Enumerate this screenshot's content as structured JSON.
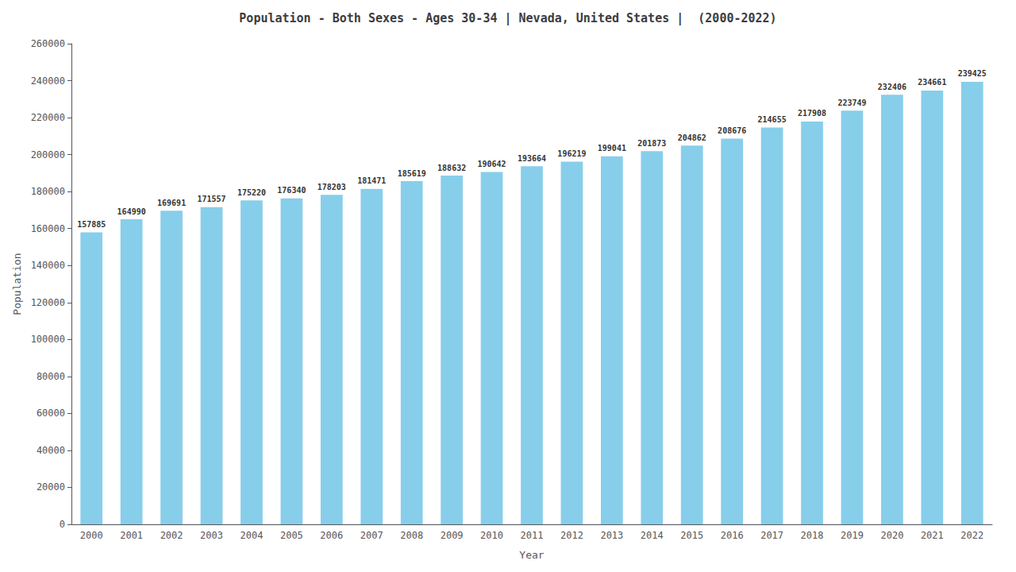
{
  "chart_data": {
    "type": "bar",
    "title": "Population - Both Sexes - Ages 30-34 | Nevada, United States |  (2000-2022)",
    "xlabel": "Year",
    "ylabel": "Population",
    "categories": [
      "2000",
      "2001",
      "2002",
      "2003",
      "2004",
      "2005",
      "2006",
      "2007",
      "2008",
      "2009",
      "2010",
      "2011",
      "2012",
      "2013",
      "2014",
      "2015",
      "2016",
      "2017",
      "2018",
      "2019",
      "2020",
      "2021",
      "2022"
    ],
    "values": [
      157885,
      164990,
      169691,
      171557,
      175220,
      176340,
      178203,
      181471,
      185619,
      188632,
      190642,
      193664,
      196219,
      199041,
      201873,
      204862,
      208676,
      214655,
      217908,
      223749,
      232406,
      234661,
      239425
    ],
    "color": "#87CEEB",
    "ylim": [
      0,
      260000
    ],
    "yticks": [
      0,
      20000,
      40000,
      60000,
      80000,
      100000,
      120000,
      140000,
      160000,
      180000,
      200000,
      220000,
      240000,
      260000
    ],
    "grid": false,
    "data_labels": true
  }
}
